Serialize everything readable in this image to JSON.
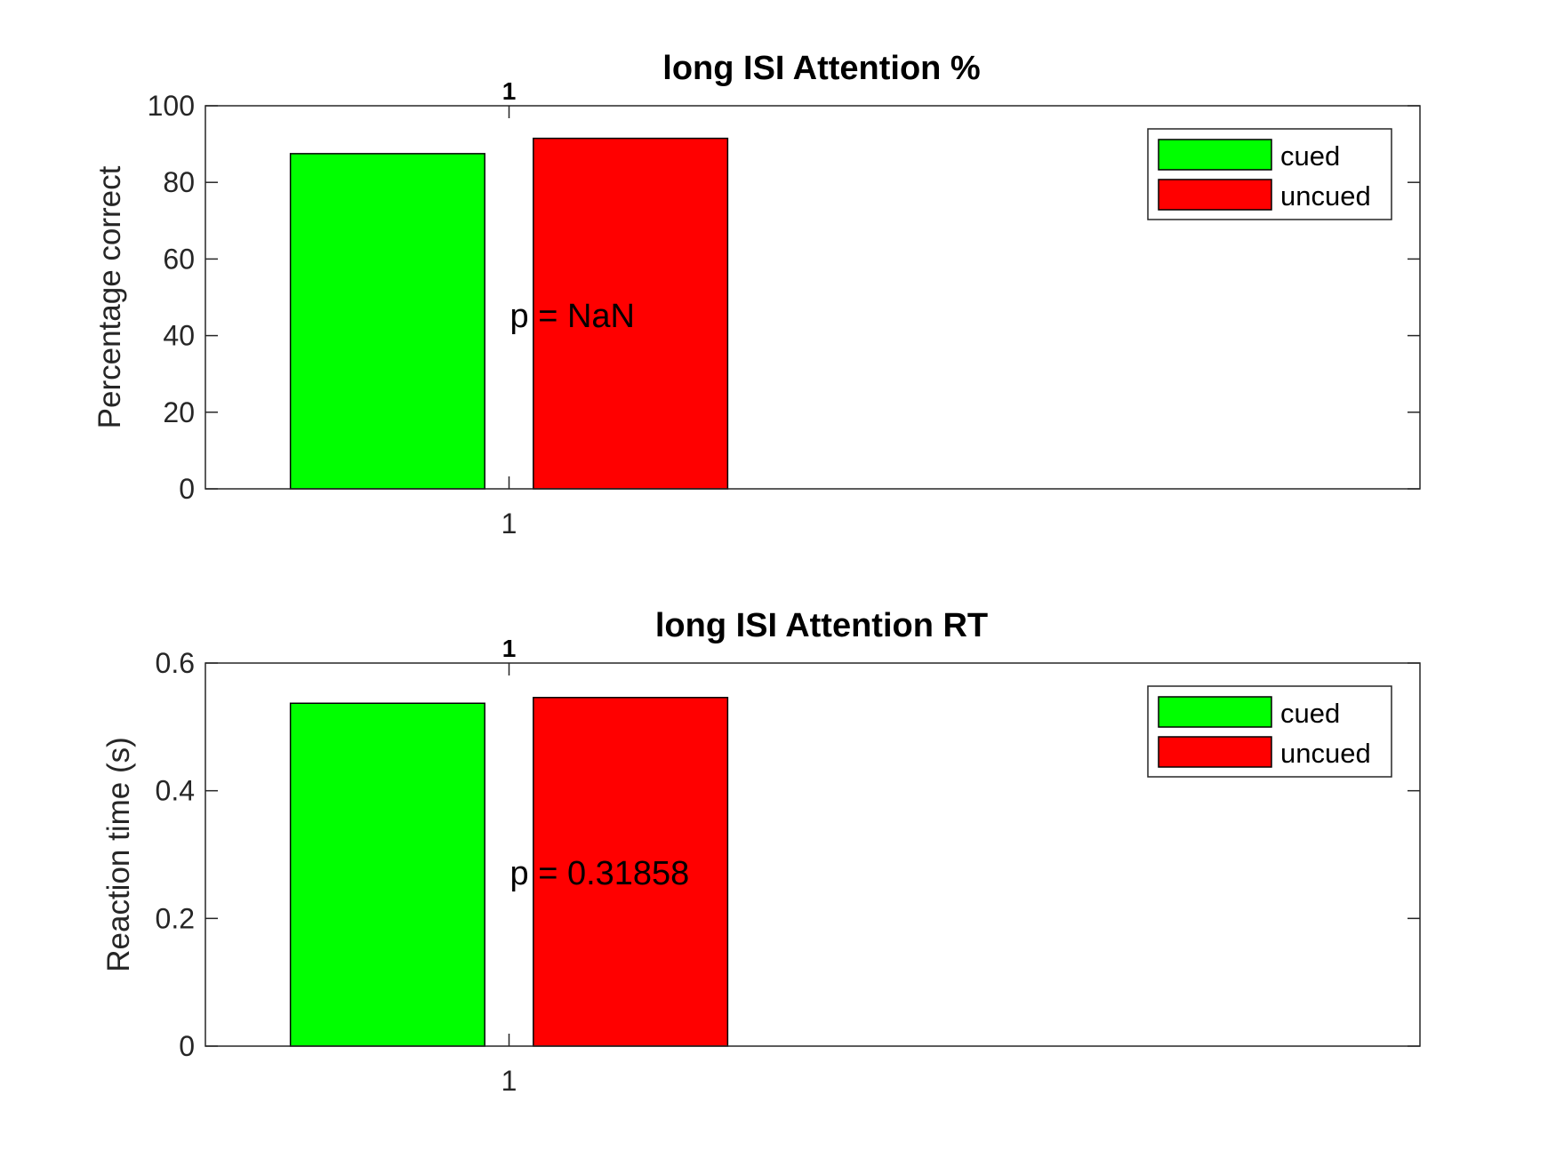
{
  "colors": {
    "cued": "#00ff00",
    "uncued": "#ff0000",
    "axis": "#262626",
    "text": "#000000"
  },
  "chart_data": [
    {
      "type": "bar",
      "title": "long ISI Attention %",
      "title_superscript": "1",
      "xlabel": "",
      "ylabel": "Percentage correct",
      "categories": [
        "1"
      ],
      "x_tick_labels": [
        "1"
      ],
      "ylim": [
        0,
        100
      ],
      "y_ticks": [
        0,
        20,
        40,
        60,
        80,
        100
      ],
      "y_tick_labels": [
        "0",
        "20",
        "40",
        "60",
        "80",
        "100"
      ],
      "series": [
        {
          "name": "cued",
          "values": [
            87.5
          ],
          "color": "#00ff00"
        },
        {
          "name": "uncued",
          "values": [
            91.5
          ],
          "color": "#ff0000"
        }
      ],
      "annotation": "p = NaN",
      "annotation_y": 45,
      "legend": {
        "position": "top-right",
        "entries": [
          "cued",
          "uncued"
        ]
      },
      "grid": false
    },
    {
      "type": "bar",
      "title": "long ISI Attention RT",
      "title_superscript": "1",
      "xlabel": "",
      "ylabel": "Reaction time (s)",
      "categories": [
        "1"
      ],
      "x_tick_labels": [
        "1"
      ],
      "ylim": [
        0,
        0.6
      ],
      "y_ticks": [
        0,
        0.2,
        0.4,
        0.6
      ],
      "y_tick_labels": [
        "0",
        "0.2",
        "0.4",
        "0.6"
      ],
      "series": [
        {
          "name": "cued",
          "values": [
            0.537
          ],
          "color": "#00ff00"
        },
        {
          "name": "uncued",
          "values": [
            0.546
          ],
          "color": "#ff0000"
        }
      ],
      "annotation": "p = 0.31858",
      "annotation_y": 0.27,
      "legend": {
        "position": "top-right",
        "entries": [
          "cued",
          "uncued"
        ]
      },
      "grid": false
    }
  ]
}
